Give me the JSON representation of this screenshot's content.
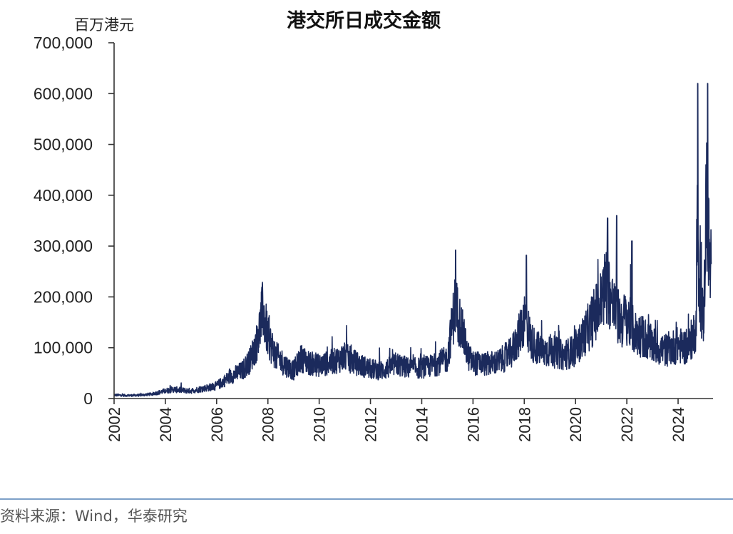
{
  "source": "资料来源：Wind，华泰研究",
  "chart_data": {
    "type": "line",
    "title": "港交所日成交金额",
    "ylabel": "百万港元",
    "xlabel": "",
    "ylim": [
      0,
      700000
    ],
    "xlim": [
      2002.0,
      2025.5
    ],
    "yticks": [
      "0",
      "100,000",
      "200,000",
      "300,000",
      "400,000",
      "500,000",
      "600,000",
      "700,000"
    ],
    "xticks": [
      "2002",
      "2004",
      "2006",
      "2008",
      "2010",
      "2012",
      "2014",
      "2016",
      "2018",
      "2020",
      "2022",
      "2024"
    ],
    "line_color": "#1b2a5c",
    "grid": false,
    "legend": "none",
    "series": [
      {
        "x": [
          2002.0,
          2002.5,
          2003.0,
          2003.5,
          2004.0,
          2004.3,
          2004.7,
          2005.0,
          2005.5,
          2006.0,
          2006.3,
          2006.6,
          2007.0,
          2007.3,
          2007.6,
          2007.8,
          2008.0,
          2008.3,
          2008.7,
          2009.0,
          2009.3,
          2009.6,
          2010.0,
          2010.5,
          2011.0,
          2011.5,
          2012.0,
          2012.5,
          2013.0,
          2013.5,
          2014.0,
          2014.5,
          2015.0,
          2015.3,
          2015.5,
          2015.8,
          2016.0,
          2016.5,
          2017.0,
          2017.5,
          2017.8,
          2018.0,
          2018.3,
          2018.7,
          2019.0,
          2019.5,
          2020.0,
          2020.5,
          2021.0,
          2021.2,
          2021.5,
          2021.8,
          2022.0,
          2022.3,
          2022.7,
          2023.0,
          2023.5,
          2024.0,
          2024.4,
          2024.7,
          2024.75,
          2024.8,
          2024.9,
          2025.0,
          2025.1,
          2025.2,
          2025.3
        ],
        "values": [
          7000,
          6000,
          6500,
          9000,
          15000,
          18000,
          16000,
          15000,
          20000,
          25000,
          35000,
          45000,
          55000,
          75000,
          115000,
          175000,
          120000,
          85000,
          65000,
          55000,
          80000,
          70000,
          65000,
          72000,
          82000,
          68000,
          58000,
          55000,
          68000,
          60000,
          60000,
          66000,
          78000,
          185000,
          150000,
          85000,
          70000,
          68000,
          72000,
          90000,
          125000,
          160000,
          110000,
          92000,
          95000,
          85000,
          95000,
          140000,
          190000,
          230000,
          175000,
          150000,
          160000,
          130000,
          120000,
          105000,
          95000,
          105000,
          100000,
          140000,
          420000,
          200000,
          175000,
          160000,
          400000,
          300000,
          200000
        ]
      }
    ]
  }
}
